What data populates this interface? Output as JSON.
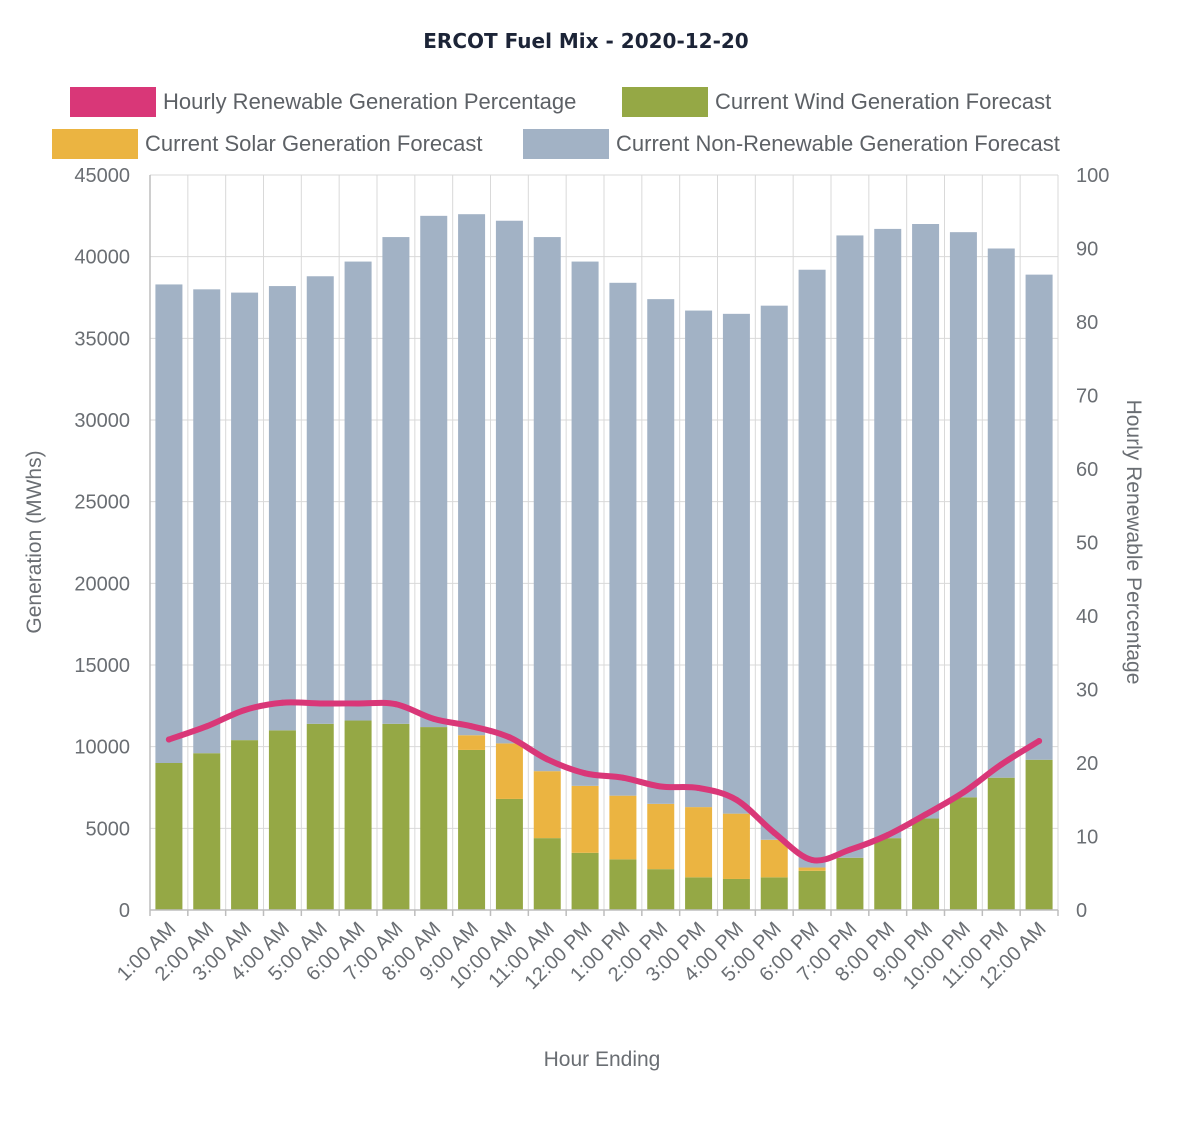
{
  "chart_data": {
    "type": "bar",
    "stacked": true,
    "title": "ERCOT Fuel Mix - 2020-12-20",
    "xlabel": "Hour Ending",
    "ylabel": "Generation (MWhs)",
    "y2label": "Hourly Renewable Percentage",
    "ylim": [
      0,
      45000
    ],
    "y2lim": [
      0,
      100
    ],
    "yticks": [
      "0",
      "5000",
      "10000",
      "15000",
      "20000",
      "25000",
      "30000",
      "35000",
      "40000",
      "45000"
    ],
    "y2ticks": [
      "0",
      "10",
      "20",
      "30",
      "40",
      "50",
      "60",
      "70",
      "80",
      "90",
      "100"
    ],
    "categories": [
      "1:00 AM",
      "2:00 AM",
      "3:00 AM",
      "4:00 AM",
      "5:00 AM",
      "6:00 AM",
      "7:00 AM",
      "8:00 AM",
      "9:00 AM",
      "10:00 AM",
      "11:00 AM",
      "12:00 PM",
      "1:00 PM",
      "2:00 PM",
      "3:00 PM",
      "4:00 PM",
      "5:00 PM",
      "6:00 PM",
      "7:00 PM",
      "8:00 PM",
      "9:00 PM",
      "10:00 PM",
      "11:00 PM",
      "12:00 AM"
    ],
    "series": [
      {
        "name": "Current Wind Generation Forecast",
        "color": "#95a845",
        "axis": "left",
        "values": [
          9000,
          9600,
          10400,
          11000,
          11400,
          11600,
          11400,
          11200,
          9800,
          6800,
          4400,
          3500,
          3100,
          2500,
          2000,
          1900,
          2000,
          2400,
          3200,
          4400,
          5600,
          6900,
          8100,
          9200
        ]
      },
      {
        "name": "Current Solar Generation Forecast",
        "color": "#ebb441",
        "axis": "left",
        "values": [
          0,
          0,
          0,
          0,
          0,
          0,
          0,
          0,
          900,
          3400,
          4100,
          4100,
          3900,
          4000,
          4300,
          4000,
          2300,
          200,
          0,
          0,
          0,
          0,
          0,
          0
        ]
      },
      {
        "name": "Current Non-Renewable Generation Forecast",
        "color": "#a2b2c5",
        "axis": "left",
        "values": [
          29300,
          28400,
          27400,
          27200,
          27400,
          28100,
          29800,
          31300,
          31900,
          32000,
          32700,
          32100,
          31400,
          30900,
          30400,
          30600,
          32700,
          36600,
          38100,
          37300,
          36400,
          34600,
          32400,
          29700
        ]
      },
      {
        "name": "Hourly Renewable Generation Percentage",
        "type": "line",
        "color": "#d93778",
        "axis": "right",
        "values": [
          23.2,
          25.0,
          27.2,
          28.2,
          28.1,
          28.1,
          28.0,
          26.0,
          25.0,
          23.5,
          20.5,
          18.6,
          18.0,
          16.8,
          16.6,
          15.0,
          10.5,
          6.8,
          8.2,
          10.2,
          13.0,
          16.0,
          19.8,
          23.0
        ]
      }
    ],
    "legend": [
      {
        "label": "Hourly Renewable Generation Percentage",
        "color": "#d93778"
      },
      {
        "label": "Current Wind Generation Forecast",
        "color": "#95a845"
      },
      {
        "label": "Current Solar Generation Forecast",
        "color": "#ebb441"
      },
      {
        "label": "Current Non-Renewable Generation Forecast",
        "color": "#a2b2c5"
      }
    ],
    "legend_position": "top",
    "grid": true
  }
}
